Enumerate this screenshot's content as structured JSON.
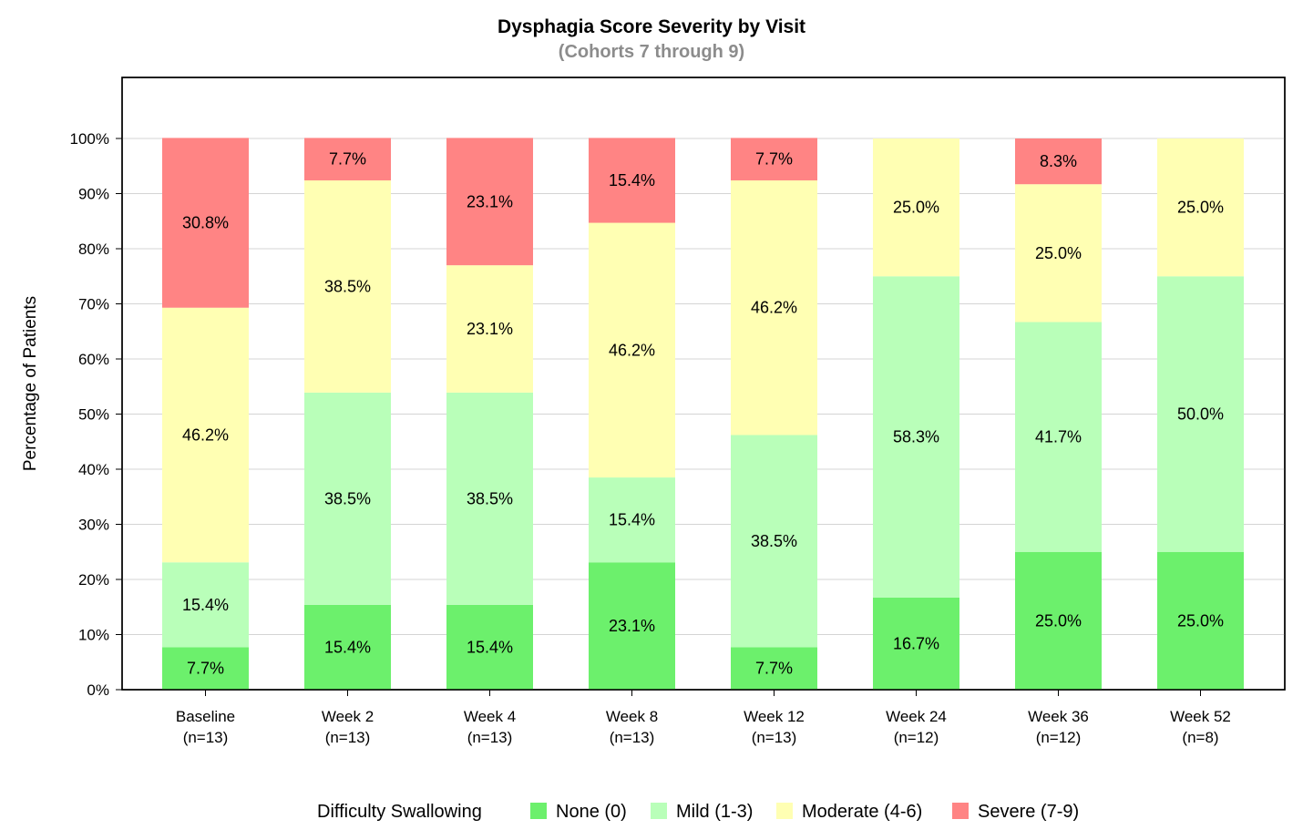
{
  "chart_data": {
    "type": "bar",
    "stacked": true,
    "title": "Dysphagia Score Severity by Visit",
    "subtitle": "(Cohorts 7 through 9)",
    "ylabel": "Percentage of Patients",
    "ylim": [
      0,
      100
    ],
    "yticks": [
      "0%",
      "10%",
      "20%",
      "30%",
      "40%",
      "50%",
      "60%",
      "70%",
      "80%",
      "90%",
      "100%"
    ],
    "grid": true,
    "legend_position": "bottom",
    "legend_title": "Difficulty Swallowing",
    "categories": [
      {
        "label": "Baseline",
        "n": "(n=13)"
      },
      {
        "label": "Week 2",
        "n": "(n=13)"
      },
      {
        "label": "Week 4",
        "n": "(n=13)"
      },
      {
        "label": "Week 8",
        "n": "(n=13)"
      },
      {
        "label": "Week 12",
        "n": "(n=13)"
      },
      {
        "label": "Week 24",
        "n": "(n=12)"
      },
      {
        "label": "Week 36",
        "n": "(n=12)"
      },
      {
        "label": "Week 52",
        "n": "(n=8)"
      }
    ],
    "series": [
      {
        "name": "None (0)",
        "color": "#6cf06c",
        "values": [
          7.7,
          15.4,
          15.4,
          23.1,
          7.7,
          16.7,
          25.0,
          25.0
        ]
      },
      {
        "name": "Mild (1-3)",
        "color": "#b9ffb9",
        "values": [
          15.4,
          38.5,
          38.5,
          15.4,
          38.5,
          58.3,
          41.7,
          50.0
        ]
      },
      {
        "name": "Moderate (4-6)",
        "color": "#ffffb3",
        "values": [
          46.2,
          38.5,
          23.1,
          46.2,
          46.2,
          25.0,
          25.0,
          25.0
        ]
      },
      {
        "name": "Severe (7-9)",
        "color": "#ff8484",
        "values": [
          30.8,
          7.7,
          23.1,
          15.4,
          7.7,
          0,
          8.3,
          0
        ]
      }
    ]
  }
}
